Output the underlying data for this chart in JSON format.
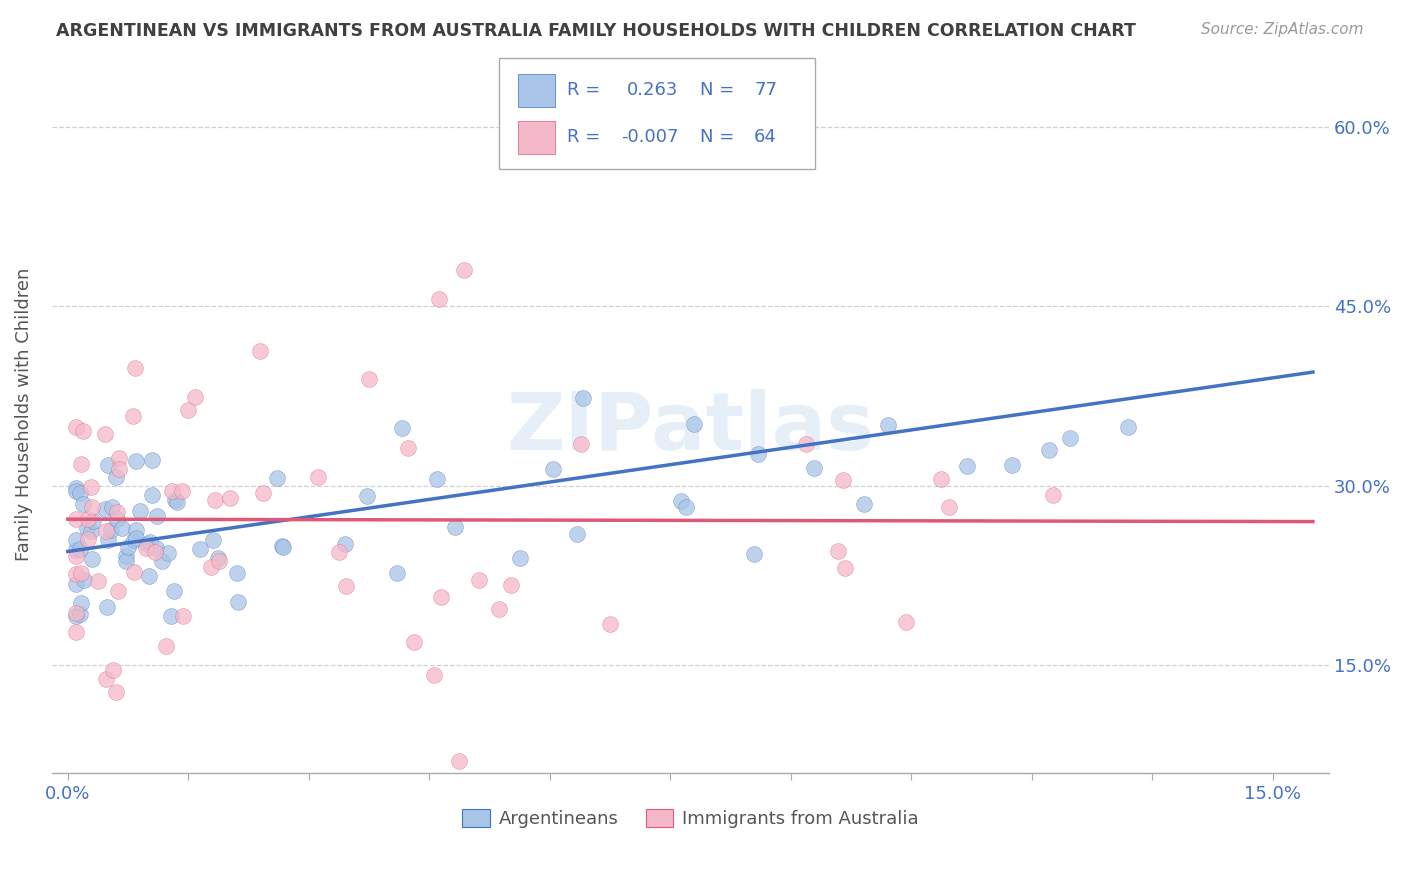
{
  "title": "ARGENTINEAN VS IMMIGRANTS FROM AUSTRALIA FAMILY HOUSEHOLDS WITH CHILDREN CORRELATION CHART",
  "source": "Source: ZipAtlas.com",
  "ylabel": "Family Households with Children",
  "blue_color": "#a8c4e6",
  "pink_color": "#f5b8c8",
  "blue_line_color": "#4472c4",
  "pink_line_color": "#e05878",
  "title_color": "#404040",
  "legend_text_color": "#4472c4",
  "axis_label_color": "#4472c4",
  "watermark": "ZIPatlas",
  "grid_color": "#d0d0d0",
  "xlim": [
    -0.002,
    0.157
  ],
  "ylim": [
    0.06,
    0.66
  ],
  "yticks": [
    0.15,
    0.3,
    0.45,
    0.6
  ],
  "ytick_labels": [
    "15.0%",
    "30.0%",
    "45.0%",
    "60.0%"
  ],
  "blue_r": 0.263,
  "blue_n": 77,
  "pink_r": -0.007,
  "pink_n": 64,
  "blue_line_x0": 0.0,
  "blue_line_y0": 0.245,
  "blue_line_x1": 0.155,
  "blue_line_y1": 0.395,
  "pink_line_x0": 0.0,
  "pink_line_y0": 0.272,
  "pink_line_x1": 0.155,
  "pink_line_y1": 0.27
}
